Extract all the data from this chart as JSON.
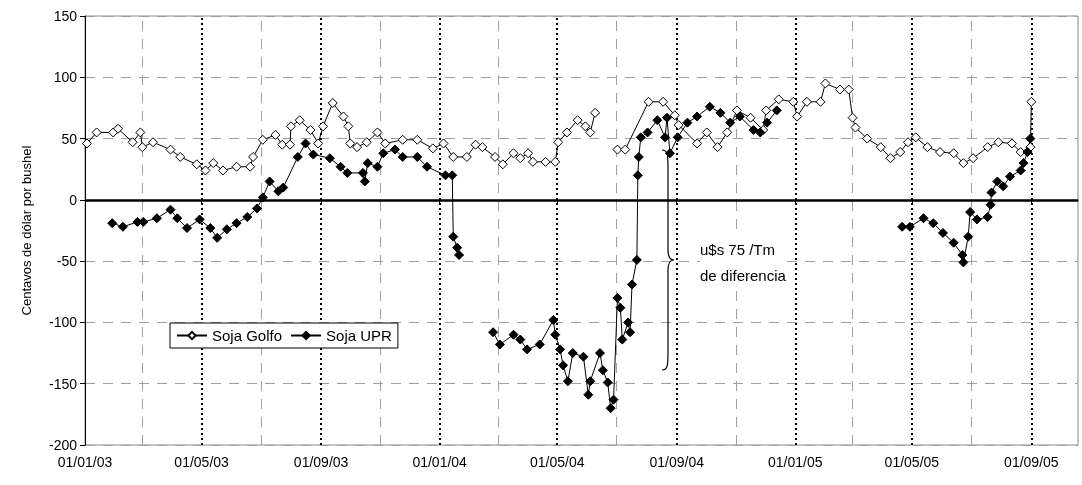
{
  "chart_data": {
    "type": "line",
    "ylabel": "Centavos de dólar por bushel",
    "xlim": [
      "2003-01-01",
      "2005-10-19"
    ],
    "ylim": [
      -200,
      150
    ],
    "yticks": [
      -200,
      -150,
      -100,
      -50,
      0,
      50,
      100,
      150
    ],
    "xticks": [
      {
        "value": "2003-01-01",
        "label": "01/01/03"
      },
      {
        "value": "2003-03-01",
        "label": null
      },
      {
        "value": "2003-05-01",
        "label": "01/05/03"
      },
      {
        "value": "2003-07-01",
        "label": null
      },
      {
        "value": "2003-09-01",
        "label": "01/09/03"
      },
      {
        "value": "2003-11-01",
        "label": null
      },
      {
        "value": "2004-01-01",
        "label": "01/01/04"
      },
      {
        "value": "2004-03-01",
        "label": null
      },
      {
        "value": "2004-05-01",
        "label": "01/05/04"
      },
      {
        "value": "2004-07-01",
        "label": null
      },
      {
        "value": "2004-09-01",
        "label": "01/09/04"
      },
      {
        "value": "2004-11-01",
        "label": null
      },
      {
        "value": "2005-01-01",
        "label": "01/01/05"
      },
      {
        "value": "2005-03-01",
        "label": null
      },
      {
        "value": "2005-05-01",
        "label": "01/05/05"
      },
      {
        "value": "2005-07-01",
        "label": null
      },
      {
        "value": "2005-09-01",
        "label": "01/09/05"
      }
    ],
    "grid": true,
    "legend": "bottom left",
    "marker": "diamond",
    "ref_lines": [
      {
        "axis": "y",
        "value": 0,
        "color": "#000000"
      }
    ],
    "annotations": [
      "u$s 75 /Tm\nde diferencia"
    ],
    "series": [
      {
        "name": "Soja Golfo",
        "color": "#ffffff",
        "x": [
          "2003-01-03",
          "2003-01-13",
          "2003-01-30",
          "2003-02-04",
          "2003-02-19",
          "2003-02-27",
          "2003-03-01",
          "2003-03-12",
          "2003-03-30",
          "2003-04-09",
          "2003-04-26",
          "2003-05-05",
          "2003-05-13",
          "2003-05-23",
          "2003-06-06",
          "2003-06-20",
          "2003-06-23",
          "2003-07-03",
          "2003-07-16",
          "2003-07-23",
          "2003-07-31",
          "2003-08-01",
          "2003-08-10",
          "2003-08-21",
          "2003-08-29",
          "2003-09-03",
          "2003-09-13",
          "2003-09-24",
          "2003-09-29",
          "2003-10-01",
          "2003-10-08",
          "2003-10-18",
          "2003-10-29",
          "2003-11-06",
          "2003-11-24",
          "2003-12-09",
          "2003-12-25",
          "2004-01-05",
          "2004-01-15",
          "2004-01-29",
          "2004-02-07",
          "2004-02-14",
          "2004-02-27",
          "2004-03-06",
          "2004-03-17",
          "2004-03-24",
          "2004-04-01",
          "2004-04-06",
          "2004-04-19",
          "2004-04-29",
          "2004-05-02",
          "2004-05-11",
          "2004-05-22",
          "2004-05-30",
          "2004-06-04",
          "2004-06-09",
          "2004-06-20",
          "2004-07-02",
          "2004-07-10",
          "2004-08-03",
          "2004-08-18",
          "2004-08-30",
          "2004-09-03",
          "2004-09-22",
          "2004-10-02",
          "2004-10-13",
          "2004-10-23",
          "2004-11-02",
          "2004-11-16",
          "2004-11-29",
          "2004-12-02",
          "2004-12-15",
          "2004-12-30",
          "2005-01-03",
          "2005-01-13",
          "2005-01-27",
          "2005-02-01",
          "2005-02-16",
          "2005-02-25",
          "2005-03-01",
          "2005-03-04",
          "2005-03-16",
          "2005-03-30",
          "2005-04-09",
          "2005-04-19",
          "2005-04-27",
          "2005-05-05",
          "2005-05-17",
          "2005-05-30",
          "2005-06-13",
          "2005-06-23",
          "2005-07-03",
          "2005-07-18",
          "2005-07-29",
          "2005-08-12",
          "2005-08-21",
          "2005-08-31",
          "2005-09-01"
        ],
        "values": [
          46,
          55,
          55,
          58,
          47,
          55,
          43,
          47,
          41,
          35,
          29,
          24,
          30,
          24,
          27,
          27,
          35,
          49,
          53,
          45,
          45,
          60,
          65,
          57,
          46,
          60,
          79,
          68,
          60,
          46,
          43,
          47,
          55,
          46,
          49,
          49,
          42,
          46,
          35,
          35,
          45,
          43,
          35,
          29,
          38,
          34,
          38,
          31,
          31,
          31,
          47,
          55,
          65,
          60,
          55,
          71,
          null,
          41,
          41,
          80,
          80,
          69,
          61,
          46,
          55,
          43,
          55,
          73,
          67,
          57,
          73,
          82,
          80,
          68,
          80,
          80,
          95,
          90,
          90,
          67,
          59,
          50,
          43,
          34,
          39,
          47,
          51,
          43,
          39,
          38,
          30,
          34,
          43,
          47,
          46,
          39,
          43,
          80
        ]
      },
      {
        "name": "Soja UPR",
        "color": "#000000",
        "x": [
          "2003-01-29",
          "2003-02-09",
          "2003-02-24",
          "2003-03-02",
          "2003-03-16",
          "2003-03-30",
          "2003-04-06",
          "2003-04-16",
          "2003-04-29",
          "2003-05-10",
          "2003-05-17",
          "2003-05-27",
          "2003-06-06",
          "2003-06-17",
          "2003-06-27",
          "2003-07-03",
          "2003-07-10",
          "2003-07-19",
          "2003-07-24",
          "2003-08-08",
          "2003-08-16",
          "2003-08-24",
          "2003-09-10",
          "2003-09-21",
          "2003-09-28",
          "2003-10-14",
          "2003-10-16",
          "2003-10-19",
          "2003-10-29",
          "2003-11-04",
          "2003-11-16",
          "2003-11-24",
          "2003-12-09",
          "2003-12-19",
          "2004-01-07",
          "2004-01-14",
          "2004-01-15",
          "2004-01-19",
          "2004-01-21",
          "2004-02-05",
          "2004-02-25",
          "2004-03-03",
          "2004-03-17",
          "2004-03-24",
          "2004-03-31",
          "2004-04-13",
          "2004-04-27",
          "2004-04-29",
          "2004-05-04",
          "2004-05-07",
          "2004-05-12",
          "2004-05-17",
          "2004-05-28",
          "2004-06-02",
          "2004-06-04",
          "2004-06-14",
          "2004-06-17",
          "2004-06-22",
          "2004-06-25",
          "2004-06-28",
          "2004-07-02",
          "2004-07-05",
          "2004-07-07",
          "2004-07-13",
          "2004-07-15",
          "2004-07-17",
          "2004-07-22",
          "2004-07-23",
          "2004-07-24",
          "2004-07-26",
          "2004-08-02",
          "2004-08-12",
          "2004-08-20",
          "2004-08-22",
          "2004-08-25",
          "2004-09-02",
          "2004-09-12",
          "2004-09-22",
          "2004-10-05",
          "2004-10-16",
          "2004-10-26",
          "2004-11-05",
          "2004-11-19",
          "2004-11-26",
          "2004-12-03",
          "2004-12-13",
          "2005-02-15",
          "2005-04-21",
          "2005-04-29",
          "2005-05-13",
          "2005-05-23",
          "2005-06-02",
          "2005-06-13",
          "2005-06-22",
          "2005-06-23",
          "2005-06-28",
          "2005-06-30",
          "2005-07-07",
          "2005-07-18",
          "2005-07-21",
          "2005-07-22",
          "2005-07-28",
          "2005-08-03",
          "2005-08-10",
          "2005-08-21",
          "2005-08-24",
          "2005-08-28",
          "2005-08-31"
        ],
        "values": [
          -19,
          -22,
          -18,
          -18,
          -15,
          -8,
          -15,
          -23,
          -16,
          -23,
          -31,
          -24,
          -19,
          -14,
          -7,
          2,
          15,
          7,
          10,
          35,
          46,
          37,
          34,
          27,
          22,
          22,
          15,
          30,
          27,
          38,
          41,
          35,
          35,
          27,
          20,
          20,
          -30,
          -39,
          -45,
          null,
          -108,
          -118,
          -110,
          -114,
          -122,
          -118,
          -98,
          -110,
          -122,
          -135,
          -148,
          -125,
          -128,
          -159,
          -148,
          -125,
          -139,
          -149,
          -170,
          -163,
          -80,
          -88,
          -114,
          -100,
          -108,
          -69,
          -49,
          20,
          35,
          51,
          55,
          65,
          51,
          67,
          38,
          51,
          63,
          68,
          76,
          71,
          63,
          68,
          57,
          55,
          63,
          73,
          null,
          -22,
          -22,
          -15,
          -19,
          -27,
          -35,
          -45,
          -51,
          -30,
          -10,
          -16,
          -14,
          -4,
          6,
          15,
          11,
          19,
          24,
          30,
          39,
          50
        ]
      }
    ]
  }
}
